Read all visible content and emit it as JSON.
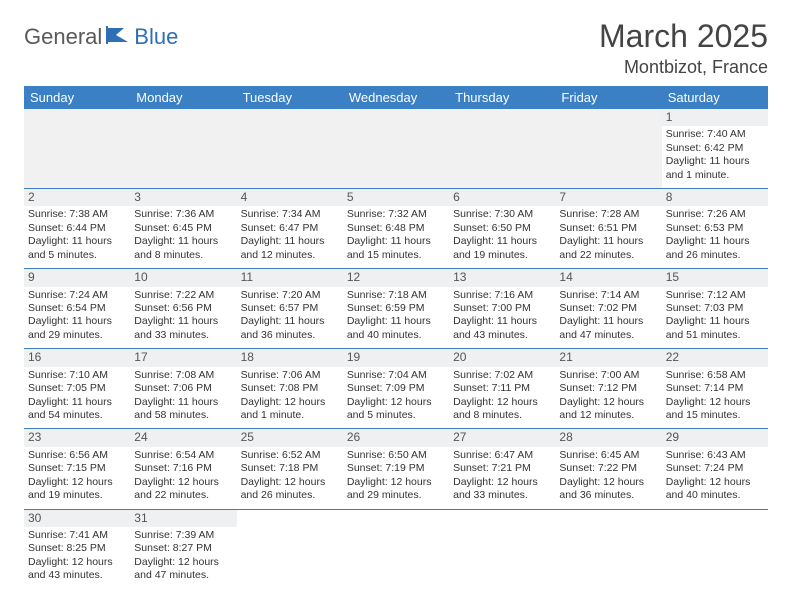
{
  "logo": {
    "part1": "General",
    "part2": "Blue"
  },
  "title": "March 2025",
  "location": "Montbizot, France",
  "colors": {
    "header_bg": "#3b7fc4",
    "header_fg": "#ffffff",
    "daynum_bg": "#eef0f2",
    "border": "#3b7fc4"
  },
  "weekdays": [
    "Sunday",
    "Monday",
    "Tuesday",
    "Wednesday",
    "Thursday",
    "Friday",
    "Saturday"
  ],
  "weeks": [
    [
      null,
      null,
      null,
      null,
      null,
      null,
      {
        "n": "1",
        "sr": "Sunrise: 7:40 AM",
        "ss": "Sunset: 6:42 PM",
        "dl": "Daylight: 11 hours and 1 minute."
      }
    ],
    [
      {
        "n": "2",
        "sr": "Sunrise: 7:38 AM",
        "ss": "Sunset: 6:44 PM",
        "dl": "Daylight: 11 hours and 5 minutes."
      },
      {
        "n": "3",
        "sr": "Sunrise: 7:36 AM",
        "ss": "Sunset: 6:45 PM",
        "dl": "Daylight: 11 hours and 8 minutes."
      },
      {
        "n": "4",
        "sr": "Sunrise: 7:34 AM",
        "ss": "Sunset: 6:47 PM",
        "dl": "Daylight: 11 hours and 12 minutes."
      },
      {
        "n": "5",
        "sr": "Sunrise: 7:32 AM",
        "ss": "Sunset: 6:48 PM",
        "dl": "Daylight: 11 hours and 15 minutes."
      },
      {
        "n": "6",
        "sr": "Sunrise: 7:30 AM",
        "ss": "Sunset: 6:50 PM",
        "dl": "Daylight: 11 hours and 19 minutes."
      },
      {
        "n": "7",
        "sr": "Sunrise: 7:28 AM",
        "ss": "Sunset: 6:51 PM",
        "dl": "Daylight: 11 hours and 22 minutes."
      },
      {
        "n": "8",
        "sr": "Sunrise: 7:26 AM",
        "ss": "Sunset: 6:53 PM",
        "dl": "Daylight: 11 hours and 26 minutes."
      }
    ],
    [
      {
        "n": "9",
        "sr": "Sunrise: 7:24 AM",
        "ss": "Sunset: 6:54 PM",
        "dl": "Daylight: 11 hours and 29 minutes."
      },
      {
        "n": "10",
        "sr": "Sunrise: 7:22 AM",
        "ss": "Sunset: 6:56 PM",
        "dl": "Daylight: 11 hours and 33 minutes."
      },
      {
        "n": "11",
        "sr": "Sunrise: 7:20 AM",
        "ss": "Sunset: 6:57 PM",
        "dl": "Daylight: 11 hours and 36 minutes."
      },
      {
        "n": "12",
        "sr": "Sunrise: 7:18 AM",
        "ss": "Sunset: 6:59 PM",
        "dl": "Daylight: 11 hours and 40 minutes."
      },
      {
        "n": "13",
        "sr": "Sunrise: 7:16 AM",
        "ss": "Sunset: 7:00 PM",
        "dl": "Daylight: 11 hours and 43 minutes."
      },
      {
        "n": "14",
        "sr": "Sunrise: 7:14 AM",
        "ss": "Sunset: 7:02 PM",
        "dl": "Daylight: 11 hours and 47 minutes."
      },
      {
        "n": "15",
        "sr": "Sunrise: 7:12 AM",
        "ss": "Sunset: 7:03 PM",
        "dl": "Daylight: 11 hours and 51 minutes."
      }
    ],
    [
      {
        "n": "16",
        "sr": "Sunrise: 7:10 AM",
        "ss": "Sunset: 7:05 PM",
        "dl": "Daylight: 11 hours and 54 minutes."
      },
      {
        "n": "17",
        "sr": "Sunrise: 7:08 AM",
        "ss": "Sunset: 7:06 PM",
        "dl": "Daylight: 11 hours and 58 minutes."
      },
      {
        "n": "18",
        "sr": "Sunrise: 7:06 AM",
        "ss": "Sunset: 7:08 PM",
        "dl": "Daylight: 12 hours and 1 minute."
      },
      {
        "n": "19",
        "sr": "Sunrise: 7:04 AM",
        "ss": "Sunset: 7:09 PM",
        "dl": "Daylight: 12 hours and 5 minutes."
      },
      {
        "n": "20",
        "sr": "Sunrise: 7:02 AM",
        "ss": "Sunset: 7:11 PM",
        "dl": "Daylight: 12 hours and 8 minutes."
      },
      {
        "n": "21",
        "sr": "Sunrise: 7:00 AM",
        "ss": "Sunset: 7:12 PM",
        "dl": "Daylight: 12 hours and 12 minutes."
      },
      {
        "n": "22",
        "sr": "Sunrise: 6:58 AM",
        "ss": "Sunset: 7:14 PM",
        "dl": "Daylight: 12 hours and 15 minutes."
      }
    ],
    [
      {
        "n": "23",
        "sr": "Sunrise: 6:56 AM",
        "ss": "Sunset: 7:15 PM",
        "dl": "Daylight: 12 hours and 19 minutes."
      },
      {
        "n": "24",
        "sr": "Sunrise: 6:54 AM",
        "ss": "Sunset: 7:16 PM",
        "dl": "Daylight: 12 hours and 22 minutes."
      },
      {
        "n": "25",
        "sr": "Sunrise: 6:52 AM",
        "ss": "Sunset: 7:18 PM",
        "dl": "Daylight: 12 hours and 26 minutes."
      },
      {
        "n": "26",
        "sr": "Sunrise: 6:50 AM",
        "ss": "Sunset: 7:19 PM",
        "dl": "Daylight: 12 hours and 29 minutes."
      },
      {
        "n": "27",
        "sr": "Sunrise: 6:47 AM",
        "ss": "Sunset: 7:21 PM",
        "dl": "Daylight: 12 hours and 33 minutes."
      },
      {
        "n": "28",
        "sr": "Sunrise: 6:45 AM",
        "ss": "Sunset: 7:22 PM",
        "dl": "Daylight: 12 hours and 36 minutes."
      },
      {
        "n": "29",
        "sr": "Sunrise: 6:43 AM",
        "ss": "Sunset: 7:24 PM",
        "dl": "Daylight: 12 hours and 40 minutes."
      }
    ],
    [
      {
        "n": "30",
        "sr": "Sunrise: 7:41 AM",
        "ss": "Sunset: 8:25 PM",
        "dl": "Daylight: 12 hours and 43 minutes."
      },
      {
        "n": "31",
        "sr": "Sunrise: 7:39 AM",
        "ss": "Sunset: 8:27 PM",
        "dl": "Daylight: 12 hours and 47 minutes."
      },
      null,
      null,
      null,
      null,
      null
    ]
  ]
}
